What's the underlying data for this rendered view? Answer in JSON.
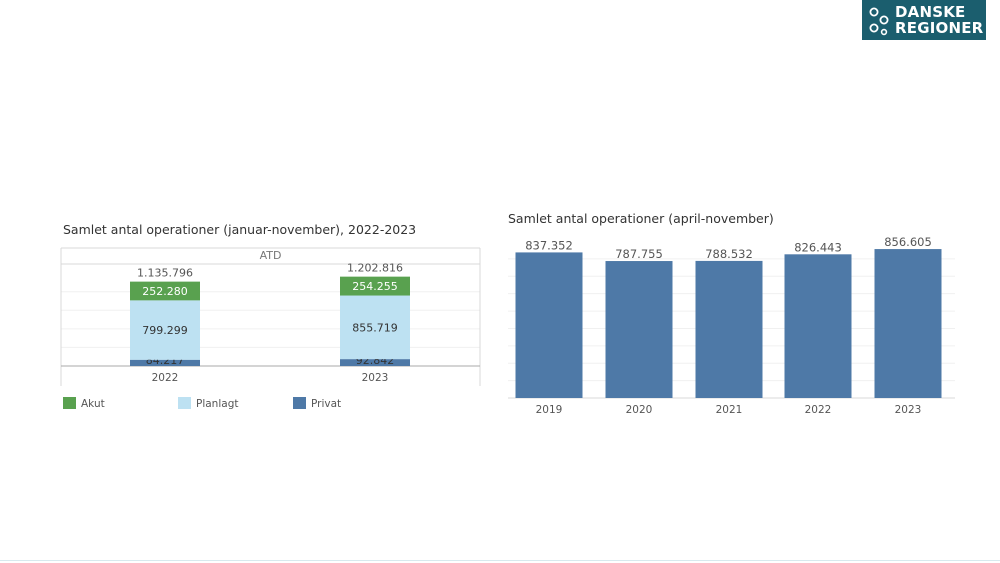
{
  "logo": {
    "line1": "DANSKE",
    "line2": "REGIONER"
  },
  "chart_data": [
    {
      "type": "bar",
      "stacked": true,
      "title": "Samlet antal operationer (januar-november), 2022-2023",
      "panel_header": "ATD",
      "categories": [
        "2022",
        "2023"
      ],
      "series": [
        {
          "name": "Privat",
          "values": [
            84217,
            92842
          ],
          "labels": [
            "84.217",
            "92.842"
          ],
          "color": "#4e79a7"
        },
        {
          "name": "Planlagt",
          "values": [
            799299,
            855719
          ],
          "labels": [
            "799.299",
            "855.719"
          ],
          "color": "#bde1f2"
        },
        {
          "name": "Akut",
          "values": [
            252280,
            254255
          ],
          "labels": [
            "252.280",
            "254.255"
          ],
          "color": "#59a14f"
        }
      ],
      "totals": [
        "1.135.796",
        "1.202.816"
      ],
      "legend": [
        {
          "name": "Akut",
          "color": "#59a14f"
        },
        {
          "name": "Planlagt",
          "color": "#bde1f2"
        },
        {
          "name": "Privat",
          "color": "#4e79a7"
        }
      ],
      "legend_position": "bottom",
      "ylim": [
        0,
        1400000
      ],
      "grid": true
    },
    {
      "type": "bar",
      "title": "Samlet antal operationer (april-november)",
      "categories": [
        "2019",
        "2020",
        "2021",
        "2022",
        "2023"
      ],
      "values": [
        837352,
        787755,
        788532,
        826443,
        856605
      ],
      "labels": [
        "837.352",
        "787.755",
        "788.532",
        "826.443",
        "856.605"
      ],
      "color": "#4e79a7",
      "ylim": [
        0,
        880000
      ],
      "grid": true
    }
  ]
}
